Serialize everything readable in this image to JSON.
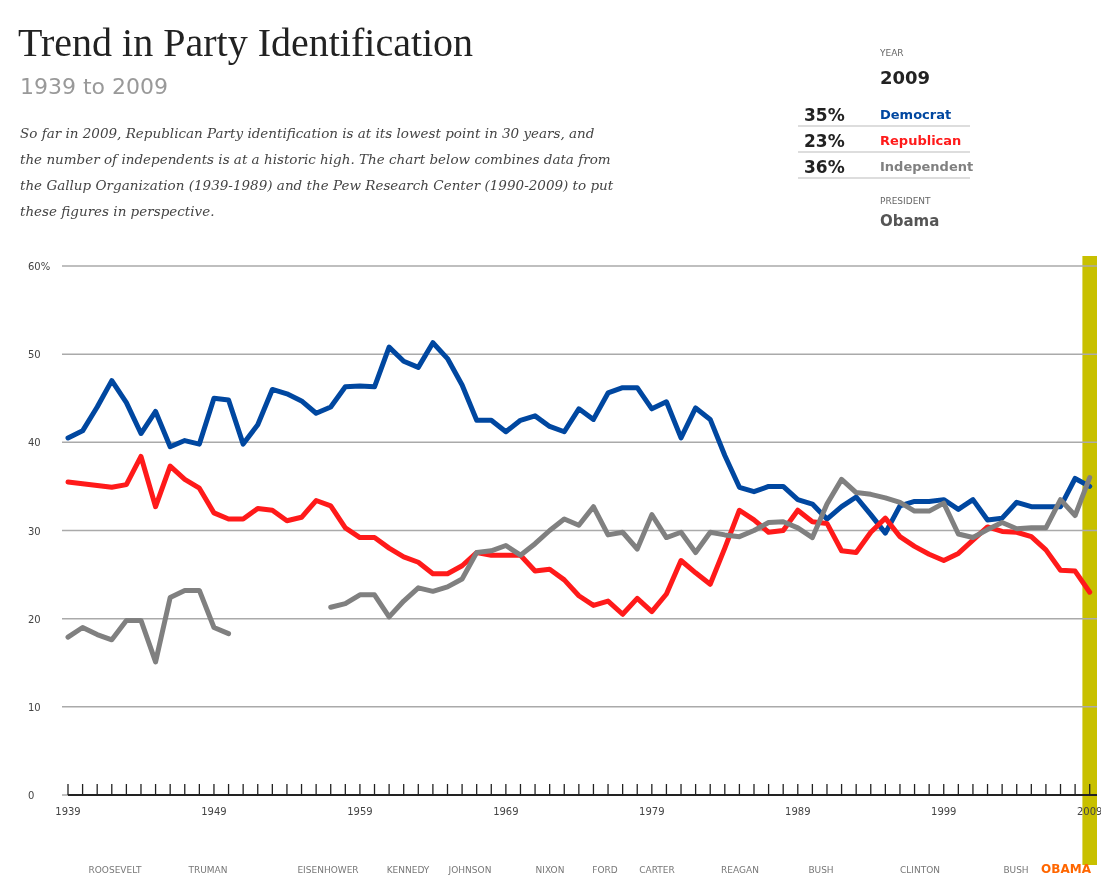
{
  "chart_data": {
    "type": "line",
    "title": "Trend in Party Identification",
    "subtitle": "1939 to 2009",
    "x": [
      1939,
      1940,
      1941,
      1942,
      1943,
      1944,
      1945,
      1946,
      1947,
      1948,
      1949,
      1950,
      1951,
      1952,
      1953,
      1954,
      1955,
      1956,
      1957,
      1958,
      1959,
      1960,
      1961,
      1962,
      1963,
      1964,
      1965,
      1966,
      1967,
      1968,
      1969,
      1970,
      1971,
      1972,
      1973,
      1974,
      1975,
      1976,
      1977,
      1978,
      1979,
      1980,
      1981,
      1982,
      1983,
      1984,
      1985,
      1986,
      1987,
      1988,
      1989,
      1990,
      1991,
      1992,
      1993,
      1994,
      1995,
      1996,
      1997,
      1998,
      1999,
      2000,
      2001,
      2002,
      2003,
      2004,
      2005,
      2006,
      2007,
      2008,
      2009
    ],
    "series": [
      {
        "name": "Democrat",
        "color": "#0047a0",
        "values": [
          40.5,
          41.3,
          44,
          47,
          44.5,
          41,
          43.5,
          39.5,
          40.2,
          39.8,
          45,
          44.8,
          39.8,
          42,
          46,
          45.5,
          44.7,
          43.3,
          44,
          46.3,
          46.4,
          46.3,
          50.8,
          49.2,
          48.5,
          51.3,
          49.5,
          46.5,
          42.5,
          42.5,
          41.2,
          42.5,
          43,
          41.8,
          41.2,
          43.8,
          42.6,
          45.6,
          46.2,
          46.2,
          43.8,
          44.6,
          40.5,
          43.9,
          42.6,
          38.5,
          34.9,
          34.4,
          35,
          35,
          33.5,
          33,
          31.3,
          32.7,
          33.8,
          31.8,
          29.7,
          32.8,
          33.3,
          33.3,
          33.5,
          32.4,
          33.5,
          31.2,
          31.4,
          33.2,
          32.7,
          32.7,
          32.7,
          35.9,
          35
        ]
      },
      {
        "name": "Republican",
        "color": "#ff1a1a",
        "values": [
          35.5,
          35.3,
          35.1,
          34.9,
          35.2,
          38.4,
          32.7,
          37.3,
          35.8,
          34.8,
          32,
          31.3,
          31.3,
          32.5,
          32.3,
          31.1,
          31.5,
          33.4,
          32.8,
          30.3,
          29.2,
          29.2,
          28,
          27,
          26.4,
          25.1,
          25.1,
          26,
          27.5,
          27.2,
          27.2,
          27.2,
          25.4,
          25.6,
          24.4,
          22.6,
          21.5,
          22,
          20.5,
          22.3,
          20.8,
          22.8,
          26.6,
          25.2,
          23.9,
          28,
          32.3,
          31.2,
          29.8,
          30,
          32.3,
          31,
          30.8,
          27.7,
          27.5,
          29.8,
          31.4,
          29.3,
          28.2,
          27.3,
          26.6,
          27.4,
          28.9,
          30.4,
          29.9,
          29.8,
          29.3,
          27.8,
          25.5,
          25.4,
          23
        ]
      },
      {
        "name": "Independent",
        "color": "#808080",
        "values": [
          17.9,
          19,
          18.2,
          17.6,
          19.8,
          19.8,
          15.1,
          22.4,
          23.2,
          23.2,
          19,
          18.3,
          null,
          null,
          null,
          null,
          null,
          null,
          21.3,
          21.7,
          22.7,
          22.7,
          20.2,
          22,
          23.5,
          23.1,
          23.6,
          24.5,
          27.5,
          27.7,
          28.3,
          27.2,
          28.5,
          30,
          31.3,
          30.6,
          32.7,
          29.5,
          29.8,
          27.9,
          31.8,
          29.2,
          29.8,
          27.5,
          29.8,
          29.5,
          29.3,
          30,
          30.9,
          31,
          30.3,
          29.2,
          33,
          35.8,
          34.3,
          34.1,
          33.7,
          33.2,
          32.2,
          32.2,
          33.1,
          29.6,
          29.2,
          30.1,
          30.9,
          30.2,
          30.3,
          30.3,
          33.5,
          31.7,
          36
        ]
      }
    ],
    "xlim": [
      1939,
      2009.5
    ],
    "xticks": [
      1939,
      {
        "value": 1940,
        "label": null
      },
      {
        "value": 1941,
        "label": null
      },
      {
        "value": 1942,
        "label": null
      },
      {
        "value": 1943,
        "label": null
      },
      {
        "value": 1944,
        "label": null
      },
      {
        "value": 1945,
        "label": null
      },
      {
        "value": 1946,
        "label": null
      },
      {
        "value": 1947,
        "label": null
      },
      {
        "value": 1948,
        "label": null
      },
      1949,
      {
        "value": 1950,
        "label": null
      },
      {
        "value": 1951,
        "label": null
      },
      {
        "value": 1952,
        "label": null
      },
      {
        "value": 1953,
        "label": null
      },
      {
        "value": 1954,
        "label": null
      },
      {
        "value": 1955,
        "label": null
      },
      {
        "value": 1956,
        "label": null
      },
      {
        "value": 1957,
        "label": null
      },
      {
        "value": 1958,
        "label": null
      },
      1959,
      {
        "value": 1960,
        "label": null
      },
      {
        "value": 1961,
        "label": null
      },
      {
        "value": 1962,
        "label": null
      },
      {
        "value": 1963,
        "label": null
      },
      {
        "value": 1964,
        "label": null
      },
      {
        "value": 1965,
        "label": null
      },
      {
        "value": 1966,
        "label": null
      },
      {
        "value": 1967,
        "label": null
      },
      {
        "value": 1968,
        "label": null
      },
      1969,
      {
        "value": 1970,
        "label": null
      },
      {
        "value": 1971,
        "label": null
      },
      {
        "value": 1972,
        "label": null
      },
      {
        "value": 1973,
        "label": null
      },
      {
        "value": 1974,
        "label": null
      },
      {
        "value": 1975,
        "label": null
      },
      {
        "value": 1976,
        "label": null
      },
      {
        "value": 1977,
        "label": null
      },
      {
        "value": 1978,
        "label": null
      },
      1979,
      {
        "value": 1980,
        "label": null
      },
      {
        "value": 1981,
        "label": null
      },
      {
        "value": 1982,
        "label": null
      },
      {
        "value": 1983,
        "label": null
      },
      {
        "value": 1984,
        "label": null
      },
      {
        "value": 1985,
        "label": null
      },
      {
        "value": 1986,
        "label": null
      },
      {
        "value": 1987,
        "label": null
      },
      {
        "value": 1988,
        "label": null
      },
      1989,
      {
        "value": 1990,
        "label": null
      },
      {
        "value": 1991,
        "label": null
      },
      {
        "value": 1992,
        "label": null
      },
      {
        "value": 1993,
        "label": null
      },
      {
        "value": 1994,
        "label": null
      },
      {
        "value": 1995,
        "label": null
      },
      {
        "value": 1996,
        "label": null
      },
      {
        "value": 1997,
        "label": null
      },
      {
        "value": 1998,
        "label": null
      },
      1999,
      {
        "value": 2000,
        "label": null
      },
      {
        "value": 2001,
        "label": null
      },
      {
        "value": 2002,
        "label": null
      },
      {
        "value": 2003,
        "label": null
      },
      {
        "value": 2004,
        "label": null
      },
      {
        "value": 2005,
        "label": null
      },
      {
        "value": 2006,
        "label": null
      },
      {
        "value": 2007,
        "label": null
      },
      {
        "value": 2008,
        "label": null
      },
      2009
    ],
    "ylim": [
      0,
      60
    ],
    "yticks": [
      0,
      10,
      20,
      30,
      40,
      50,
      {
        "value": 60,
        "label": "60%"
      }
    ],
    "grid": "y",
    "legend": "top right",
    "marker": "none",
    "line_style": "solid",
    "bands": [
      {
        "axis": "x",
        "from": 2008.5,
        "to": 2009.5,
        "color": "#c8c000"
      }
    ],
    "annotations": [
      "So far in 2009, Republican Party identification is at its lowest point in 30 years, and the number of independents is at a historic high. The chart below combines data from the Gallup Organization (1939-1989) and the Pew Research Center (1990-2009) to put these figures in perspective.",
      "YEAR",
      "2009",
      "35%",
      "23%",
      "36%",
      "PRESIDENT",
      "Obama",
      "ROOSEVELT",
      "TRUMAN",
      "EISENHOWER",
      "KENNEDY",
      "JOHNSON",
      "NIXON",
      "FORD",
      "CARTER",
      "REAGAN",
      "BUSH",
      "CLINTON",
      "BUSH",
      "OBAMA"
    ]
  }
}
